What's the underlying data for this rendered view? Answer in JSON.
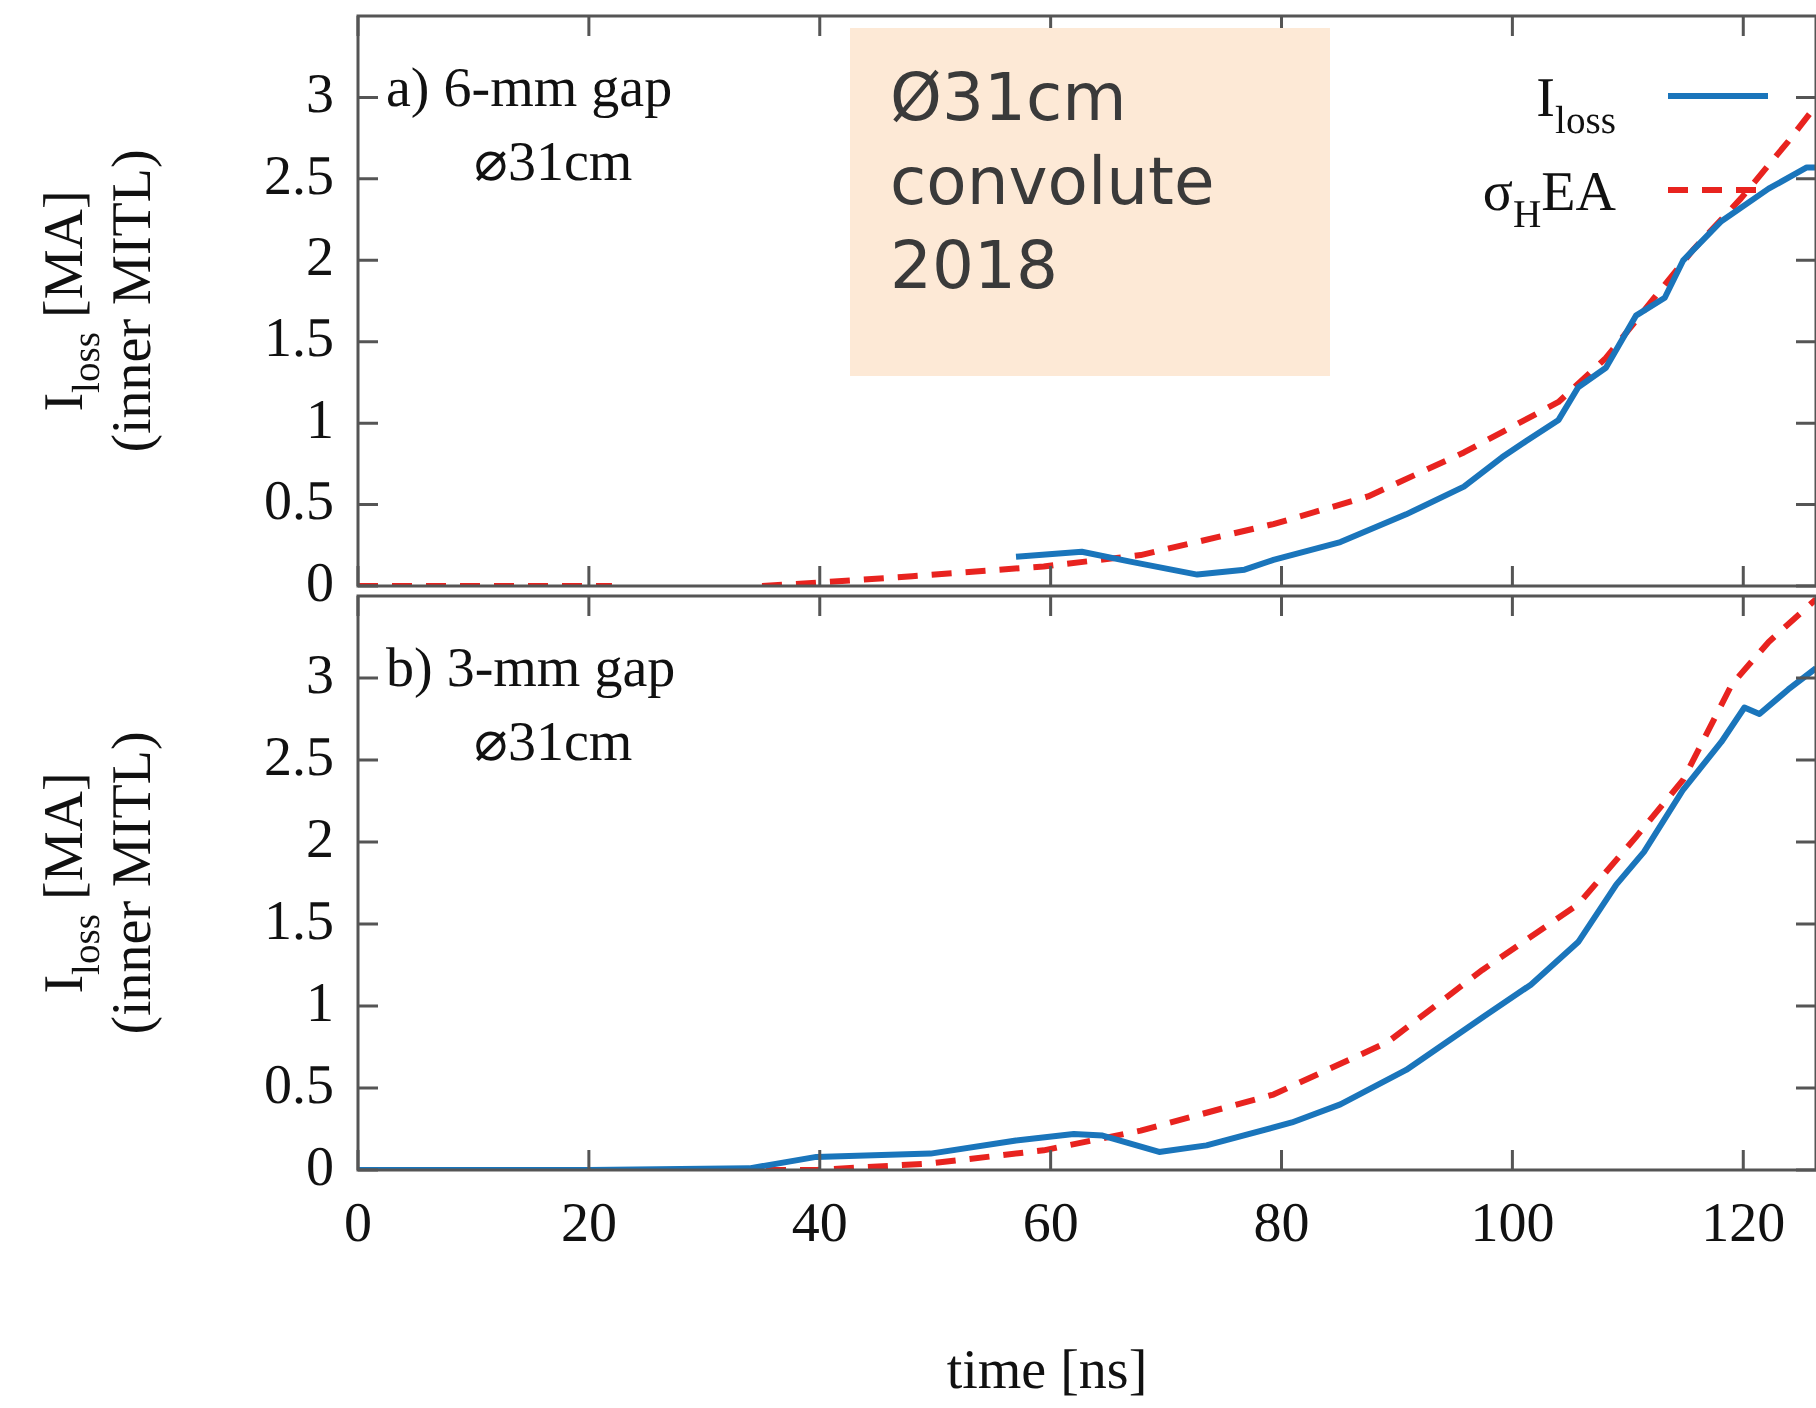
{
  "chart_data": [
    {
      "type": "line",
      "ylabel": "I$_{loss}$ [MA]\n(inner MITL)",
      "annotations": [
        "a) 6-mm gap\n⌀31cm",
        "Ø31cm\nconvolute\n2018"
      ],
      "xlim": [
        0,
        126.3
      ],
      "xticks": [
        0,
        20,
        40,
        60,
        80,
        100,
        120
      ],
      "ylim": [
        0,
        3.5
      ],
      "yticks": [
        0,
        0.5,
        1,
        1.5,
        2,
        2.5,
        3
      ],
      "tick_labels": "y",
      "legend": "top right",
      "marker": "none",
      "series": [
        {
          "name": "I$_{loss}$",
          "color": "#1a75bb",
          "line_style": "solid",
          "x": [
            57,
            62.7,
            66.9,
            72.7,
            76.8,
            79.3,
            85.1,
            90.8,
            95.8,
            99.1,
            101.2,
            104,
            105.7,
            108.1,
            110.7,
            113.2,
            114.8,
            118.1,
            122.2,
            125.5,
            126.3
          ],
          "values": [
            0.18,
            0.21,
            0.15,
            0.07,
            0.1,
            0.16,
            0.27,
            0.44,
            0.61,
            0.79,
            0.89,
            1.02,
            1.22,
            1.34,
            1.66,
            1.77,
            2,
            2.24,
            2.44,
            2.57,
            2.57
          ]
        },
        {
          "name": "σ$_{H}$EA",
          "color": "#e8231f",
          "line_style": "dashed",
          "x": [
            0,
            22,
            28,
            35,
            39.7,
            48,
            59.4,
            67.8,
            79.3,
            87.5,
            95.8,
            104,
            108.1,
            112.3,
            115.6,
            119.8,
            123.9,
            126.3
          ],
          "values": [
            0,
            0,
            null,
            0,
            0.02,
            0.06,
            0.12,
            0.19,
            0.38,
            0.55,
            0.82,
            1.13,
            1.4,
            1.77,
            2.06,
            2.38,
            2.73,
            2.95
          ]
        }
      ]
    },
    {
      "type": "line",
      "xlabel": "time [ns]",
      "ylabel": "I$_{loss}$ [MA]\n(inner MITL)",
      "annotations": [
        "b) 3-mm gap\n⌀31cm"
      ],
      "xlim": [
        0,
        126.3
      ],
      "xticks": [
        0,
        20,
        40,
        60,
        80,
        100,
        120
      ],
      "ylim": [
        0,
        3.5
      ],
      "yticks": [
        0,
        0.5,
        1,
        1.5,
        2,
        2.5,
        3
      ],
      "marker": "none",
      "series": [
        {
          "color": "#1a75bb",
          "line_style": "solid",
          "x": [
            0,
            20,
            33.9,
            39.7,
            49.6,
            57,
            62,
            64.5,
            69.4,
            73.5,
            80.9,
            85.1,
            90.8,
            97.4,
            101.6,
            105.7,
            109,
            111.4,
            114.8,
            118.1,
            120.1,
            121.4,
            123.9,
            126.3
          ],
          "values": [
            0,
            0,
            0.01,
            0.08,
            0.1,
            0.18,
            0.22,
            0.21,
            0.11,
            0.15,
            0.29,
            0.4,
            0.61,
            0.93,
            1.13,
            1.39,
            1.74,
            1.94,
            2.32,
            2.61,
            2.82,
            2.78,
            2.93,
            3.06
          ]
        },
        {
          "color": "#e8231f",
          "line_style": "dashed",
          "x": [
            0,
            30,
            39.7,
            49.6,
            59.4,
            67.8,
            79.3,
            89.2,
            97.4,
            105.7,
            110.7,
            114.8,
            119,
            122.2,
            125.5,
            126.3
          ],
          "values": [
            0,
            0,
            0,
            0.04,
            0.12,
            0.24,
            0.46,
            0.78,
            1.22,
            1.62,
            2.03,
            2.38,
            2.96,
            3.22,
            3.43,
            3.48
          ]
        }
      ]
    }
  ]
}
